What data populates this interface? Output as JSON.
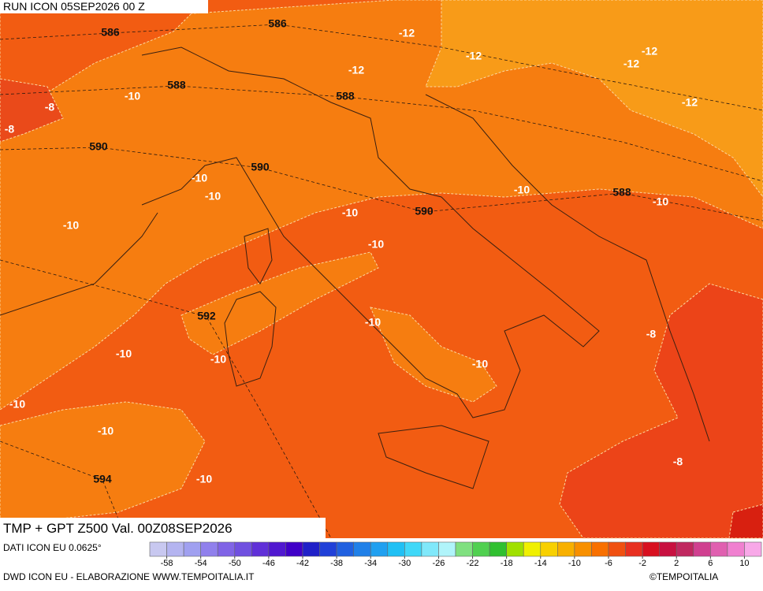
{
  "header": {
    "run": "RUN ICON 05SEP2026 00 Z"
  },
  "title": "TMP + GPT Z500 Val. 00Z08SEP2026",
  "geopotential_labels": [
    586,
    586,
    588,
    588,
    590,
    590,
    590,
    588,
    592,
    594
  ],
  "temperature_labels": [
    -12,
    -12,
    -12,
    -12,
    -12,
    -12,
    -8,
    -8,
    -10,
    -10,
    -10,
    -10,
    -10,
    -10,
    -10,
    -10,
    -10,
    -10,
    -10,
    -10,
    -10,
    -10,
    -10,
    -8,
    -8
  ],
  "colorbar": {
    "colors": [
      "#c8c8f0",
      "#b4b4f0",
      "#a0a0f0",
      "#9080ec",
      "#8064e6",
      "#7050e0",
      "#6030d8",
      "#5018d0",
      "#4000c8",
      "#2020c8",
      "#2040d8",
      "#2060e0",
      "#2080e8",
      "#20a0f0",
      "#20c0f4",
      "#40d8f8",
      "#80e8fa",
      "#b0f4fa",
      "#80e080",
      "#50d050",
      "#30c030",
      "#a0e000",
      "#f0f000",
      "#f8d000",
      "#f8b000",
      "#f89000",
      "#f87000",
      "#f05010",
      "#e83020",
      "#d81020",
      "#c81040",
      "#c02860",
      "#d04090",
      "#e060b0",
      "#f080d0",
      "#f8a8e8"
    ],
    "ticks": [
      -58,
      -54,
      -50,
      -46,
      -42,
      -38,
      -34,
      -30,
      -26,
      -22,
      -18,
      -14,
      -10,
      -6,
      -2,
      2,
      6,
      10
    ]
  },
  "footer": {
    "data_source": "DATI ICON EU 0.0625°",
    "credit": "DWD ICON EU - ELABORAZIONE WWW.TEMPOITALIA.IT",
    "copyright": "©TEMPOITALIA"
  }
}
